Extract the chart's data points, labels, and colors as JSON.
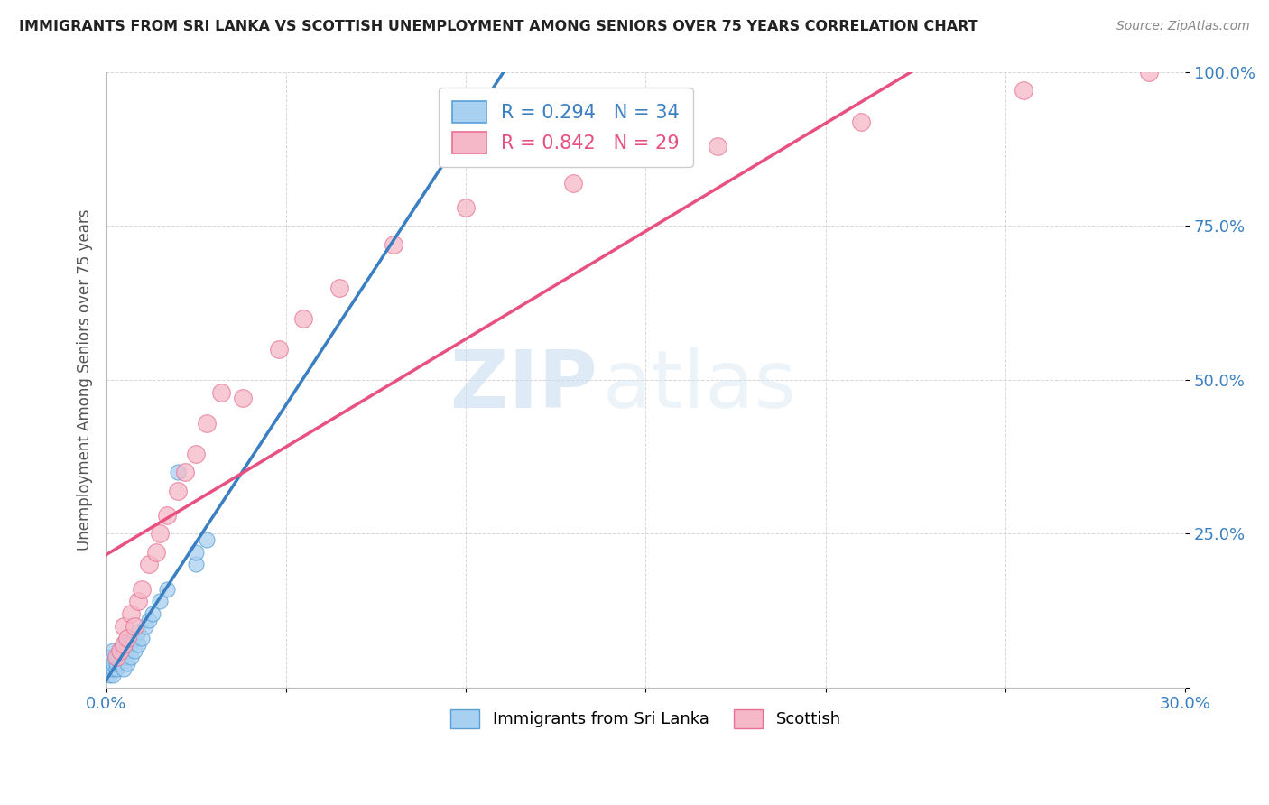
{
  "title": "IMMIGRANTS FROM SRI LANKA VS SCOTTISH UNEMPLOYMENT AMONG SENIORS OVER 75 YEARS CORRELATION CHART",
  "source": "Source: ZipAtlas.com",
  "ylabel": "Unemployment Among Seniors over 75 years",
  "xlim": [
    0.0,
    0.3
  ],
  "ylim": [
    0.0,
    1.0
  ],
  "xticks": [
    0.0,
    0.05,
    0.1,
    0.15,
    0.2,
    0.25,
    0.3
  ],
  "xtick_labels": [
    "0.0%",
    "",
    "",
    "",
    "",
    "",
    "30.0%"
  ],
  "yticks": [
    0.0,
    0.25,
    0.5,
    0.75,
    1.0
  ],
  "ytick_labels": [
    "",
    "25.0%",
    "50.0%",
    "75.0%",
    "100.0%"
  ],
  "blue_R": 0.294,
  "blue_N": 34,
  "pink_R": 0.842,
  "pink_N": 29,
  "blue_color": "#a8d0f0",
  "blue_edge_color": "#5a9fd4",
  "blue_line_color": "#3a7fc1",
  "blue_dash_color": "#8ab8e0",
  "pink_color": "#f5b8c8",
  "pink_edge_color": "#e87090",
  "pink_line_color": "#e85080",
  "blue_scatter_x": [
    0.001,
    0.001,
    0.001,
    0.002,
    0.002,
    0.002,
    0.002,
    0.003,
    0.003,
    0.003,
    0.004,
    0.004,
    0.005,
    0.005,
    0.005,
    0.006,
    0.006,
    0.006,
    0.007,
    0.007,
    0.008,
    0.008,
    0.009,
    0.009,
    0.01,
    0.011,
    0.012,
    0.013,
    0.015,
    0.017,
    0.02,
    0.025,
    0.025,
    0.028
  ],
  "blue_scatter_y": [
    0.02,
    0.03,
    0.05,
    0.02,
    0.03,
    0.04,
    0.06,
    0.03,
    0.04,
    0.05,
    0.04,
    0.06,
    0.03,
    0.05,
    0.07,
    0.04,
    0.06,
    0.07,
    0.05,
    0.07,
    0.06,
    0.08,
    0.07,
    0.09,
    0.08,
    0.1,
    0.11,
    0.12,
    0.14,
    0.16,
    0.35,
    0.2,
    0.22,
    0.24
  ],
  "pink_scatter_x": [
    0.003,
    0.004,
    0.005,
    0.005,
    0.006,
    0.007,
    0.008,
    0.009,
    0.01,
    0.012,
    0.014,
    0.015,
    0.017,
    0.02,
    0.022,
    0.025,
    0.028,
    0.032,
    0.038,
    0.048,
    0.055,
    0.065,
    0.08,
    0.1,
    0.13,
    0.17,
    0.21,
    0.255,
    0.29
  ],
  "pink_scatter_y": [
    0.05,
    0.06,
    0.07,
    0.1,
    0.08,
    0.12,
    0.1,
    0.14,
    0.16,
    0.2,
    0.22,
    0.25,
    0.28,
    0.32,
    0.35,
    0.38,
    0.43,
    0.48,
    0.47,
    0.55,
    0.6,
    0.65,
    0.72,
    0.78,
    0.82,
    0.88,
    0.92,
    0.97,
    1.0
  ],
  "watermark_zip": "ZIP",
  "watermark_atlas": "atlas",
  "background_color": "#ffffff",
  "grid_color": "#cccccc"
}
